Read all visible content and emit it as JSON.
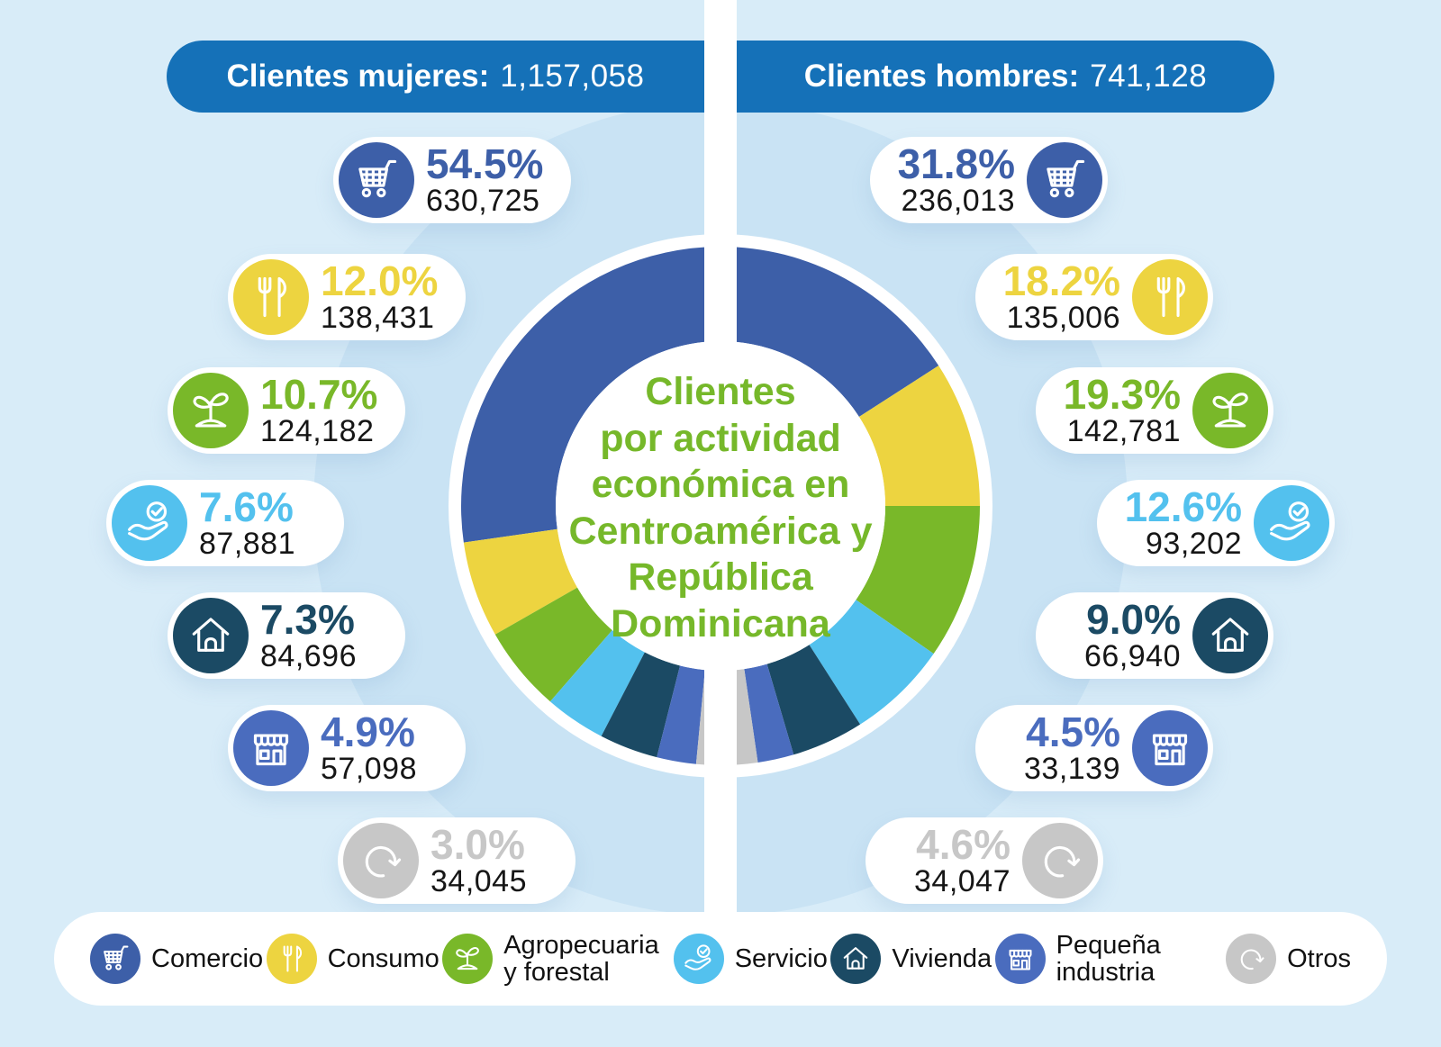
{
  "page": {
    "bg": "#d8ecf8",
    "circle": "#c9e3f4",
    "divider": "#ffffff"
  },
  "header": {
    "bg": "#1571b8",
    "women": {
      "label": "Clientes mujeres:",
      "value": "1,157,058"
    },
    "men": {
      "label": "Clientes hombres:",
      "value": "741,128"
    }
  },
  "title": {
    "color": "#76b82a",
    "lines": [
      "Clientes",
      "por actividad",
      "económica en",
      "Centroamérica y",
      "República",
      "Dominicana"
    ]
  },
  "categories": [
    {
      "id": "comercio",
      "label": "Comercio",
      "color": "#3d5fa8",
      "icon": "cart-icon"
    },
    {
      "id": "consumo",
      "label": "Consumo",
      "color": "#edd440",
      "icon": "cutlery-icon"
    },
    {
      "id": "agropecuaria",
      "label": "Agropecuaria y forestal",
      "color": "#79b829",
      "icon": "plant-icon"
    },
    {
      "id": "servicio",
      "label": "Servicio",
      "color": "#53c1ee",
      "icon": "hand-check-icon"
    },
    {
      "id": "vivienda",
      "label": "Vivienda",
      "color": "#1b4a64",
      "icon": "house-icon"
    },
    {
      "id": "pequena_industria",
      "label": "Pequeña industria",
      "color": "#4a6cbe",
      "icon": "store-icon"
    },
    {
      "id": "otros",
      "label": "Otros",
      "color": "#c7c7c7",
      "icon": "refresh-icon"
    }
  ],
  "chart_data": {
    "type": "donut-split",
    "title": "Clientes por actividad económica en Centroamérica y República Dominicana",
    "legend_position": "bottom",
    "halves": [
      {
        "key": "mujeres",
        "name": "Clientes mujeres",
        "total": "1,157,058",
        "side": "left",
        "series": [
          {
            "category": "Comercio",
            "pct": 54.5,
            "pct_label": "54.5%",
            "value": 630725,
            "value_label": "630,725"
          },
          {
            "category": "Consumo",
            "pct": 12.0,
            "pct_label": "12.0%",
            "value": 138431,
            "value_label": "138,431"
          },
          {
            "category": "Agropecuaria y forestal",
            "pct": 10.7,
            "pct_label": "10.7%",
            "value": 124182,
            "value_label": "124,182"
          },
          {
            "category": "Servicio",
            "pct": 7.6,
            "pct_label": "7.6%",
            "value": 87881,
            "value_label": "87,881"
          },
          {
            "category": "Vivienda",
            "pct": 7.3,
            "pct_label": "7.3%",
            "value": 84696,
            "value_label": "84,696"
          },
          {
            "category": "Pequeña industria",
            "pct": 4.9,
            "pct_label": "4.9%",
            "value": 57098,
            "value_label": "57,098"
          },
          {
            "category": "Otros",
            "pct": 3.0,
            "pct_label": "3.0%",
            "value": 34045,
            "value_label": "34,045"
          }
        ]
      },
      {
        "key": "hombres",
        "name": "Clientes hombres",
        "total": "741,128",
        "side": "right",
        "series": [
          {
            "category": "Comercio",
            "pct": 31.8,
            "pct_label": "31.8%",
            "value": 236013,
            "value_label": "236,013"
          },
          {
            "category": "Consumo",
            "pct": 18.2,
            "pct_label": "18.2%",
            "value": 135006,
            "value_label": "135,006"
          },
          {
            "category": "Agropecuaria y forestal",
            "pct": 19.3,
            "pct_label": "19.3%",
            "value": 142781,
            "value_label": "142,781"
          },
          {
            "category": "Servicio",
            "pct": 12.6,
            "pct_label": "12.6%",
            "value": 93202,
            "value_label": "93,202"
          },
          {
            "category": "Vivienda",
            "pct": 9.0,
            "pct_label": "9.0%",
            "value": 66940,
            "value_label": "66,940"
          },
          {
            "category": "Pequeña industria",
            "pct": 4.5,
            "pct_label": "4.5%",
            "value": 33139,
            "value_label": "33,139"
          },
          {
            "category": "Otros",
            "pct": 4.6,
            "pct_label": "4.6%",
            "value": 34047,
            "value_label": "34,047"
          }
        ]
      }
    ]
  }
}
